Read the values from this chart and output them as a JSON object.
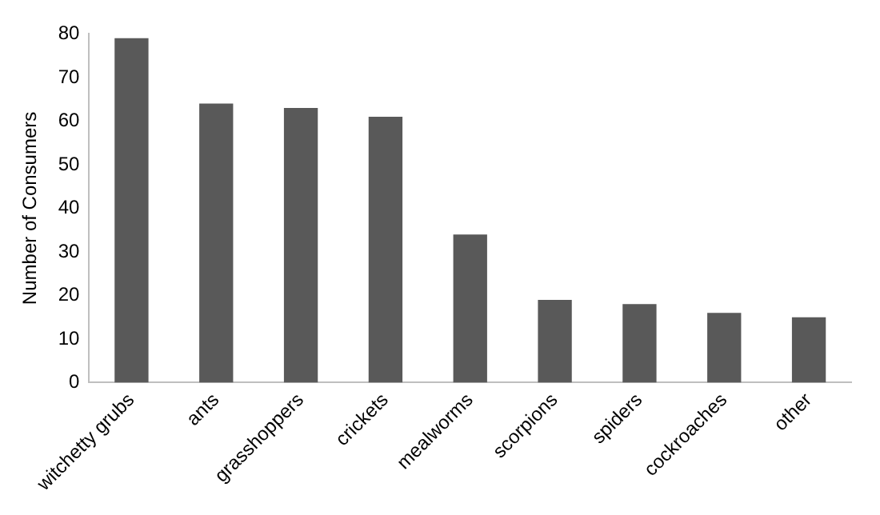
{
  "chart_data": {
    "type": "bar",
    "ylabel": "Number of Consumers",
    "categories": [
      "witchetty grubs",
      "ants",
      "grasshoppers",
      "crickets",
      "mealworms",
      "scorpions",
      "spiders",
      "cockroaches",
      "other"
    ],
    "values": [
      79,
      64,
      63,
      61,
      34,
      19,
      18,
      16,
      15
    ],
    "color": "#595959",
    "ylim": [
      0,
      80
    ],
    "yticks": [
      0,
      10,
      20,
      30,
      40,
      50,
      60,
      70,
      80
    ],
    "grid": false,
    "legend": false
  }
}
